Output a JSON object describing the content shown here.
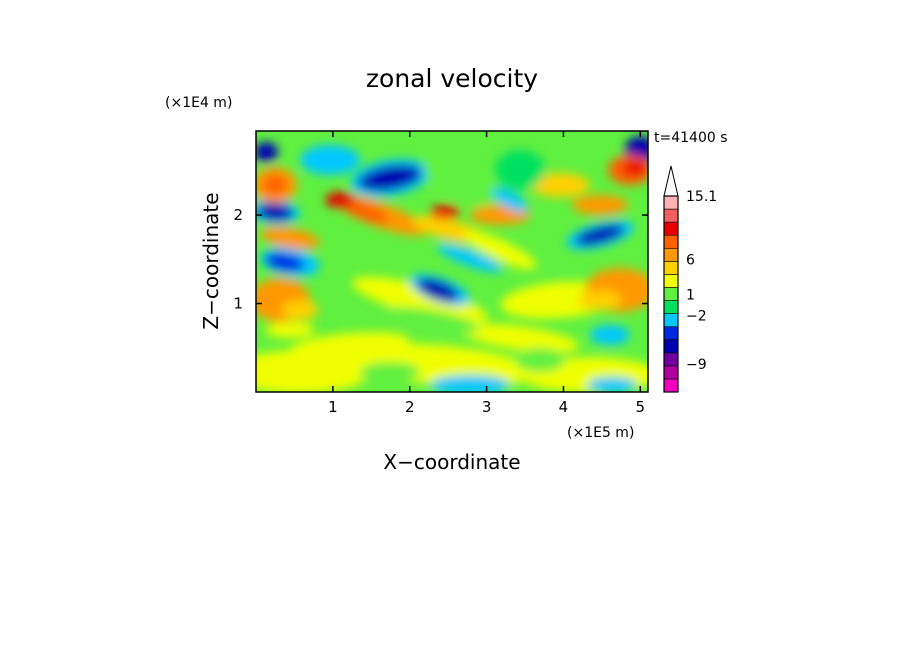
{
  "chart_data": {
    "type": "heatmap",
    "title": "zonal velocity",
    "time_label": "t=41400 s",
    "xlabel": "X−coordinate",
    "ylabel": "Z−coordinate",
    "x_multiplier_label": "(×1E5 m)",
    "y_multiplier_label": "(×1E4 m)",
    "xlim": [
      0,
      5.1
    ],
    "ylim": [
      0,
      2.95
    ],
    "x_ticks": [
      1,
      2,
      3,
      4,
      5
    ],
    "x_tick_labels": [
      "1",
      "2",
      "3",
      "4",
      "5"
    ],
    "y_ticks": [
      1,
      2
    ],
    "y_tick_labels": [
      "1",
      "2"
    ],
    "colorbar": {
      "colors": [
        "#f000c0",
        "#b000a0",
        "#7000a0",
        "#0000b0",
        "#0028e0",
        "#00c8ff",
        "#00e060",
        "#60f040",
        "#f0ff00",
        "#ffd000",
        "#ff9800",
        "#ff6000",
        "#e80000",
        "#f06060",
        "#ffb0b0",
        "#ffffff"
      ],
      "labels": [
        {
          "text": "15.1",
          "value": 15.1
        },
        {
          "text": "6",
          "value": 6
        },
        {
          "text": "1",
          "value": 1
        },
        {
          "text": "−2",
          "value": -2
        },
        {
          "text": "−9",
          "value": -9
        }
      ]
    }
  }
}
